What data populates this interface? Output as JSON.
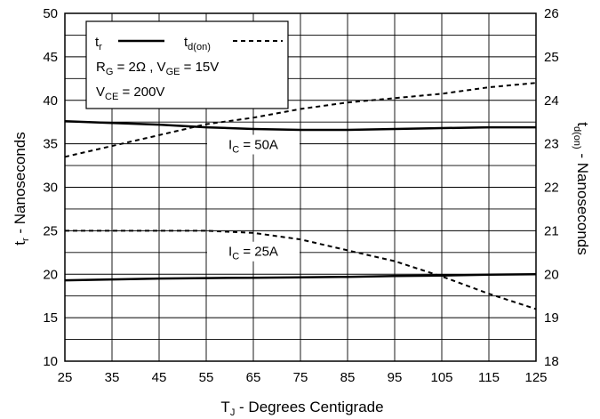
{
  "chart_data": {
    "type": "line",
    "x_axis": {
      "label_main": "T",
      "label_sub": "J",
      "label_rest": " - Degrees Centigrade",
      "range": [
        25,
        125
      ],
      "ticks": [
        25,
        35,
        45,
        55,
        65,
        75,
        85,
        95,
        105,
        115,
        125
      ]
    },
    "y_left": {
      "label_main": "t",
      "label_sub": "r",
      "label_rest": " - Nanoseconds",
      "range": [
        10,
        50
      ],
      "ticks": [
        10,
        15,
        20,
        25,
        30,
        35,
        40,
        45,
        50
      ]
    },
    "y_right": {
      "label_main": "t",
      "label_sub": "d(on)",
      "label_rest": " - Nanoseconds",
      "range": [
        18,
        26
      ],
      "ticks": [
        18,
        19,
        20,
        21,
        22,
        23,
        24,
        25,
        26
      ]
    },
    "grid": true,
    "legend": {
      "placement": "top-left",
      "tr_main": "t",
      "tr_sub": "r",
      "td_main": "t",
      "td_sub": "d(on)",
      "rg_main": "R",
      "rg_sub": "G",
      "rg_rest": " = 2Ω ,  V",
      "vge_sub": "GE",
      "vge_rest": " = 15V",
      "vce_main": "V",
      "vce_sub": "CE",
      "vce_rest": " = 200V"
    },
    "annotations": [
      {
        "main": "I",
        "sub": "C",
        "rest": " = 50A",
        "x": 65,
        "y": 34.5
      },
      {
        "main": "I",
        "sub": "C",
        "rest": " = 25A",
        "x": 65,
        "y": 22.2
      }
    ],
    "series": [
      {
        "axis": "left",
        "style": "solid",
        "x": [
          25,
          35,
          45,
          55,
          65,
          75,
          85,
          95,
          105,
          115,
          125
        ],
        "y": [
          37.6,
          37.4,
          37.2,
          36.9,
          36.7,
          36.6,
          36.6,
          36.7,
          36.8,
          36.9,
          36.9
        ]
      },
      {
        "axis": "right",
        "style": "dashed",
        "x": [
          25,
          35,
          45,
          55,
          65,
          75,
          85,
          95,
          105,
          115,
          125
        ],
        "y": [
          22.7,
          22.95,
          23.2,
          23.45,
          23.6,
          23.8,
          23.95,
          24.05,
          24.15,
          24.3,
          24.4
        ]
      },
      {
        "axis": "left",
        "style": "solid",
        "x": [
          25,
          35,
          45,
          55,
          65,
          75,
          85,
          95,
          105,
          115,
          125
        ],
        "y": [
          19.3,
          19.4,
          19.5,
          19.55,
          19.6,
          19.65,
          19.7,
          19.8,
          19.85,
          19.95,
          20.0
        ]
      },
      {
        "axis": "right",
        "style": "dashed",
        "x": [
          25,
          35,
          45,
          55,
          65,
          75,
          85,
          95,
          105,
          115,
          125
        ],
        "y": [
          21.0,
          21.0,
          21.0,
          21.0,
          20.95,
          20.8,
          20.55,
          20.3,
          19.95,
          19.55,
          19.2
        ]
      }
    ]
  }
}
